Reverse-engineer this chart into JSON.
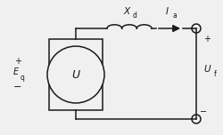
{
  "bg_color": "#f0f0f0",
  "line_color": "#1a1a1a",
  "fig_width": 2.5,
  "fig_height": 1.52,
  "dpi": 100,
  "label_U": "U",
  "label_Eq": "E",
  "label_Eq_sub": "q",
  "label_Xd": "X",
  "label_Xd_sub": "d",
  "label_Ia": "I",
  "label_Ia_sub": "a",
  "label_Uf": "U",
  "label_Uf_sub": "f"
}
